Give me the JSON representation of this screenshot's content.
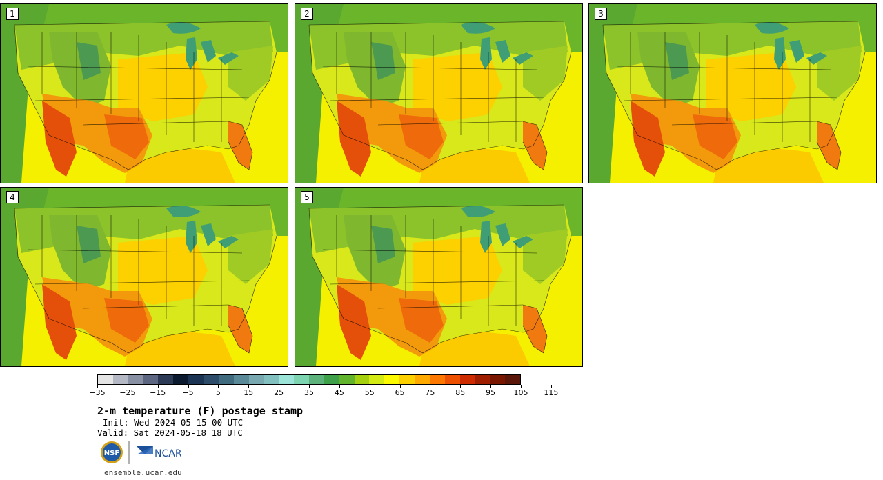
{
  "panels": [
    {
      "label": "1"
    },
    {
      "label": "2"
    },
    {
      "label": "3"
    },
    {
      "label": "4"
    },
    {
      "label": "5"
    }
  ],
  "colorbar": {
    "colors": [
      "#e4e4e4",
      "#b4b8c4",
      "#8890a4",
      "#5c6680",
      "#2c3a56",
      "#0c1a30",
      "#1c3454",
      "#2c4c6a",
      "#406a7e",
      "#5a8a98",
      "#7aa8b0",
      "#82c0c0",
      "#9ce4d8",
      "#7cd4b0",
      "#5cb27a",
      "#3ea048",
      "#62b42c",
      "#a4d010",
      "#d4ea14",
      "#fbfa00",
      "#fdd000",
      "#feaa00",
      "#fc7800",
      "#ec5000",
      "#cc2c00",
      "#a01e00",
      "#781600",
      "#5a1608"
    ],
    "tick_labels": [
      "−35",
      "−25",
      "−15",
      "−5",
      "5",
      "15",
      "25",
      "35",
      "45",
      "55",
      "65",
      "75",
      "85",
      "95",
      "105",
      "115"
    ]
  },
  "title": "2-m temperature (F) postage stamp",
  "init_line": "Init: Wed 2024-05-15 00 UTC",
  "valid_line": "Valid: Sat 2024-05-18 18 UTC",
  "logos": {
    "nsf": "NSF",
    "ncar": "NCAR"
  },
  "footer_url": "ensemble.ucar.edu",
  "map_colors": {
    "ocean_atlantic": "#f5f000",
    "ocean_gulf": "#fbcb00",
    "pacific": "#5aa830",
    "land_green": "#8cc22a",
    "mountain": "#4c9a52",
    "hot_orange": "#f07a10",
    "very_hot": "#e4500a",
    "lakes": "#3f9e76"
  }
}
